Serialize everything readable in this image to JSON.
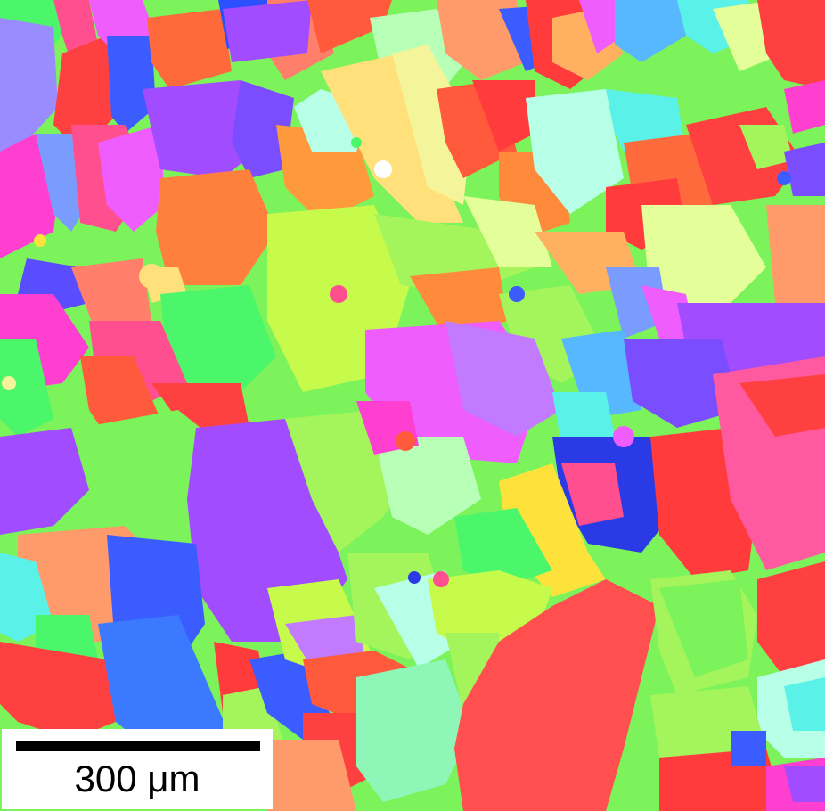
{
  "image": {
    "kind": "EBSD inverse pole figure orientation map",
    "palette": [
      "#ff3b3b",
      "#ff5a3c",
      "#ff7f45",
      "#ff9a6a",
      "#ffb060",
      "#ffe07a",
      "#fde23c",
      "#f4f49a",
      "#e4ff9a",
      "#c6fb4c",
      "#a4f45c",
      "#7cf35a",
      "#4cf66a",
      "#8ef7b8",
      "#b8ffe8",
      "#5af2e8",
      "#4ed8ff",
      "#58b8ff",
      "#3b5dff",
      "#2a3be6",
      "#7a4dff",
      "#a24cff",
      "#c27bff",
      "#ef5dff",
      "#ff3fcf",
      "#ff4f8f"
    ]
  },
  "scale_bar": {
    "label": "300 μm"
  }
}
